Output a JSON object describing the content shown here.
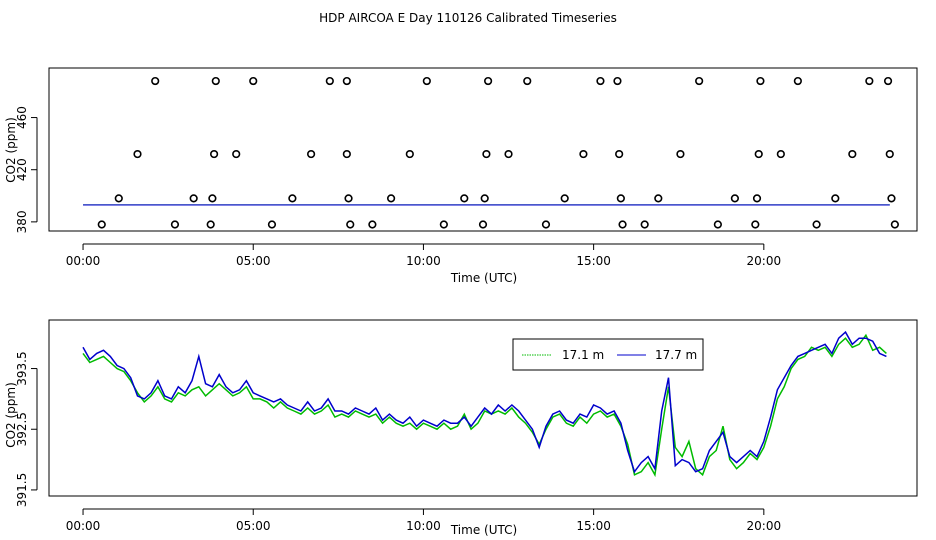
{
  "title": "HDP AIRCOA E  Day 110126  Calibrated Timeseries",
  "colors": {
    "series_17_1": "#00bb00",
    "series_17_7": "#0000cc",
    "frame": "#000000"
  },
  "chart_data": [
    {
      "type": "scatter",
      "xlabel": "Time (UTC)",
      "ylabel": "CO2 (ppm)",
      "xlim": [
        -1,
        24.5
      ],
      "ylim": [
        373,
        498
      ],
      "xtick_values": [
        0,
        5,
        10,
        15,
        20
      ],
      "xtick_labels": [
        "00:00",
        "05:00",
        "10:00",
        "15:00",
        "20:00"
      ],
      "ytick_values": [
        380,
        420,
        460
      ],
      "ytick_labels": [
        "380",
        "420",
        "460"
      ],
      "grid": false,
      "line_value": 393,
      "points": [
        {
          "x": 0.55,
          "y": 378
        },
        {
          "x": 1.05,
          "y": 398
        },
        {
          "x": 1.6,
          "y": 432
        },
        {
          "x": 2.12,
          "y": 488
        },
        {
          "x": 2.7,
          "y": 378
        },
        {
          "x": 3.25,
          "y": 398
        },
        {
          "x": 3.75,
          "y": 378
        },
        {
          "x": 3.8,
          "y": 398
        },
        {
          "x": 3.85,
          "y": 432
        },
        {
          "x": 3.9,
          "y": 488
        },
        {
          "x": 4.5,
          "y": 432
        },
        {
          "x": 5.0,
          "y": 488
        },
        {
          "x": 5.55,
          "y": 378
        },
        {
          "x": 6.15,
          "y": 398
        },
        {
          "x": 6.7,
          "y": 432
        },
        {
          "x": 7.25,
          "y": 488
        },
        {
          "x": 7.75,
          "y": 432
        },
        {
          "x": 7.75,
          "y": 488
        },
        {
          "x": 7.8,
          "y": 398
        },
        {
          "x": 7.85,
          "y": 378
        },
        {
          "x": 8.5,
          "y": 378
        },
        {
          "x": 9.05,
          "y": 398
        },
        {
          "x": 9.6,
          "y": 432
        },
        {
          "x": 10.1,
          "y": 488
        },
        {
          "x": 10.6,
          "y": 378
        },
        {
          "x": 11.2,
          "y": 398
        },
        {
          "x": 11.75,
          "y": 378
        },
        {
          "x": 11.8,
          "y": 398
        },
        {
          "x": 11.85,
          "y": 432
        },
        {
          "x": 11.9,
          "y": 488
        },
        {
          "x": 12.5,
          "y": 432
        },
        {
          "x": 13.05,
          "y": 488
        },
        {
          "x": 13.6,
          "y": 378
        },
        {
          "x": 14.15,
          "y": 398
        },
        {
          "x": 14.7,
          "y": 432
        },
        {
          "x": 15.2,
          "y": 488
        },
        {
          "x": 15.7,
          "y": 488
        },
        {
          "x": 15.75,
          "y": 432
        },
        {
          "x": 15.8,
          "y": 398
        },
        {
          "x": 15.85,
          "y": 378
        },
        {
          "x": 16.5,
          "y": 378
        },
        {
          "x": 16.9,
          "y": 398
        },
        {
          "x": 17.55,
          "y": 432
        },
        {
          "x": 18.1,
          "y": 488
        },
        {
          "x": 18.65,
          "y": 378
        },
        {
          "x": 19.15,
          "y": 398
        },
        {
          "x": 19.75,
          "y": 378
        },
        {
          "x": 19.8,
          "y": 398
        },
        {
          "x": 19.85,
          "y": 432
        },
        {
          "x": 19.9,
          "y": 488
        },
        {
          "x": 20.5,
          "y": 432
        },
        {
          "x": 21.0,
          "y": 488
        },
        {
          "x": 21.55,
          "y": 378
        },
        {
          "x": 22.1,
          "y": 398
        },
        {
          "x": 22.6,
          "y": 432
        },
        {
          "x": 23.1,
          "y": 488
        },
        {
          "x": 23.65,
          "y": 488
        },
        {
          "x": 23.7,
          "y": 432
        },
        {
          "x": 23.75,
          "y": 398
        },
        {
          "x": 23.85,
          "y": 378
        }
      ]
    },
    {
      "type": "line",
      "xlabel": "Time (UTC)",
      "ylabel": "CO2 (ppm)",
      "xlim": [
        -1,
        24.5
      ],
      "ylim": [
        391.4,
        394.3
      ],
      "xtick_values": [
        0,
        5,
        10,
        15,
        20
      ],
      "xtick_labels": [
        "00:00",
        "05:00",
        "10:00",
        "15:00",
        "20:00"
      ],
      "ytick_values": [
        391.5,
        392.5,
        393.5
      ],
      "ytick_labels": [
        "391.5",
        "392.5",
        "393.5"
      ],
      "grid": false,
      "legend": "top-right",
      "series": [
        {
          "name": "17.1 m",
          "x": [
            0.0,
            0.2,
            0.4,
            0.6,
            0.8,
            1.0,
            1.2,
            1.4,
            1.6,
            1.8,
            2.0,
            2.2,
            2.4,
            2.6,
            2.8,
            3.0,
            3.2,
            3.4,
            3.6,
            3.8,
            4.0,
            4.2,
            4.4,
            4.6,
            4.8,
            5.0,
            5.2,
            5.4,
            5.6,
            5.8,
            6.0,
            6.2,
            6.4,
            6.6,
            6.8,
            7.0,
            7.2,
            7.4,
            7.6,
            7.8,
            8.0,
            8.2,
            8.4,
            8.6,
            8.8,
            9.0,
            9.2,
            9.4,
            9.6,
            9.8,
            10.0,
            10.2,
            10.4,
            10.6,
            10.8,
            11.0,
            11.2,
            11.4,
            11.6,
            11.8,
            12.0,
            12.2,
            12.4,
            12.6,
            12.8,
            13.0,
            13.2,
            13.4,
            13.6,
            13.8,
            14.0,
            14.2,
            14.4,
            14.6,
            14.8,
            15.0,
            15.2,
            15.4,
            15.6,
            15.8,
            16.0,
            16.2,
            16.4,
            16.6,
            16.8,
            17.0,
            17.2,
            17.4,
            17.6,
            17.8,
            18.0,
            18.2,
            18.4,
            18.6,
            18.8,
            19.0,
            19.2,
            19.4,
            19.6,
            19.8,
            20.0,
            20.2,
            20.4,
            20.6,
            20.8,
            21.0,
            21.2,
            21.4,
            21.6,
            21.8,
            22.0,
            22.2,
            22.4,
            22.6,
            22.8,
            23.0,
            23.2,
            23.4,
            23.6
          ],
          "y": [
            393.75,
            393.6,
            393.65,
            393.7,
            393.6,
            393.5,
            393.45,
            393.3,
            393.1,
            392.95,
            393.05,
            393.2,
            393.0,
            392.95,
            393.1,
            393.05,
            393.15,
            393.2,
            393.05,
            393.15,
            393.25,
            393.15,
            393.05,
            393.1,
            393.2,
            393.0,
            393.0,
            392.95,
            392.85,
            392.95,
            392.85,
            392.8,
            392.75,
            392.85,
            392.75,
            392.8,
            392.9,
            392.7,
            392.75,
            392.7,
            392.8,
            392.75,
            392.7,
            392.75,
            392.6,
            392.7,
            392.6,
            392.55,
            392.6,
            392.5,
            392.6,
            392.55,
            392.5,
            392.6,
            392.5,
            392.55,
            392.75,
            392.5,
            392.6,
            392.8,
            392.75,
            392.8,
            392.75,
            392.85,
            392.7,
            392.6,
            392.45,
            392.25,
            392.5,
            392.7,
            392.75,
            392.6,
            392.55,
            392.7,
            392.6,
            392.75,
            392.8,
            392.7,
            392.75,
            392.55,
            392.25,
            391.75,
            391.8,
            391.95,
            391.75,
            392.5,
            393.2,
            392.2,
            392.05,
            392.3,
            391.85,
            391.75,
            392.05,
            392.15,
            392.55,
            392.0,
            391.85,
            391.95,
            392.1,
            392.0,
            392.2,
            392.55,
            393.0,
            393.2,
            393.5,
            393.65,
            393.7,
            393.85,
            393.8,
            393.85,
            393.7,
            393.9,
            394.0,
            393.85,
            393.9,
            394.05,
            393.8,
            393.85,
            393.75
          ]
        },
        {
          "name": "17.7 m",
          "x": [
            0.0,
            0.2,
            0.4,
            0.6,
            0.8,
            1.0,
            1.2,
            1.4,
            1.6,
            1.8,
            2.0,
            2.2,
            2.4,
            2.6,
            2.8,
            3.0,
            3.2,
            3.4,
            3.6,
            3.8,
            4.0,
            4.2,
            4.4,
            4.6,
            4.8,
            5.0,
            5.2,
            5.4,
            5.6,
            5.8,
            6.0,
            6.2,
            6.4,
            6.6,
            6.8,
            7.0,
            7.2,
            7.4,
            7.6,
            7.8,
            8.0,
            8.2,
            8.4,
            8.6,
            8.8,
            9.0,
            9.2,
            9.4,
            9.6,
            9.8,
            10.0,
            10.2,
            10.4,
            10.6,
            10.8,
            11.0,
            11.2,
            11.4,
            11.6,
            11.8,
            12.0,
            12.2,
            12.4,
            12.6,
            12.8,
            13.0,
            13.2,
            13.4,
            13.6,
            13.8,
            14.0,
            14.2,
            14.4,
            14.6,
            14.8,
            15.0,
            15.2,
            15.4,
            15.6,
            15.8,
            16.0,
            16.2,
            16.4,
            16.6,
            16.8,
            17.0,
            17.2,
            17.4,
            17.6,
            17.8,
            18.0,
            18.2,
            18.4,
            18.6,
            18.8,
            19.0,
            19.2,
            19.4,
            19.6,
            19.8,
            20.0,
            20.2,
            20.4,
            20.6,
            20.8,
            21.0,
            21.2,
            21.4,
            21.6,
            21.8,
            22.0,
            22.2,
            22.4,
            22.6,
            22.8,
            23.0,
            23.2,
            23.4,
            23.6
          ],
          "y": [
            393.85,
            393.65,
            393.75,
            393.8,
            393.7,
            393.55,
            393.5,
            393.35,
            393.05,
            393.0,
            393.1,
            393.3,
            393.05,
            393.0,
            393.2,
            393.1,
            393.3,
            393.7,
            393.25,
            393.2,
            393.4,
            393.2,
            393.1,
            393.15,
            393.3,
            393.1,
            393.05,
            393.0,
            392.95,
            393.0,
            392.9,
            392.85,
            392.8,
            392.95,
            392.8,
            392.85,
            393.0,
            392.8,
            392.8,
            392.75,
            392.85,
            392.8,
            392.75,
            392.85,
            392.65,
            392.75,
            392.65,
            392.6,
            392.7,
            392.55,
            392.65,
            392.6,
            392.55,
            392.65,
            392.6,
            392.6,
            392.7,
            392.55,
            392.7,
            392.85,
            392.75,
            392.9,
            392.8,
            392.9,
            392.8,
            392.65,
            392.5,
            392.2,
            392.55,
            392.75,
            392.8,
            392.65,
            392.6,
            392.75,
            392.7,
            392.9,
            392.85,
            392.75,
            392.8,
            392.6,
            392.15,
            391.8,
            391.95,
            392.05,
            391.85,
            392.8,
            393.35,
            391.9,
            392.0,
            391.95,
            391.8,
            391.85,
            392.15,
            392.3,
            392.45,
            392.05,
            391.95,
            392.05,
            392.15,
            392.05,
            392.3,
            392.7,
            393.15,
            393.35,
            393.55,
            393.7,
            393.75,
            393.8,
            393.85,
            393.9,
            393.75,
            394.0,
            394.1,
            393.9,
            394.0,
            394.0,
            393.95,
            393.75,
            393.7
          ]
        }
      ]
    }
  ]
}
